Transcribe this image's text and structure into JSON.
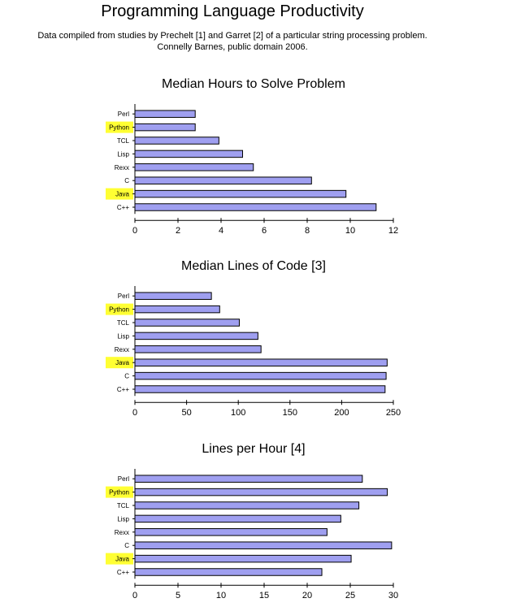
{
  "page": {
    "title": "Programming Language Productivity",
    "subtitle_line1": "Data compiled from studies by Prechelt [1] and Garret [2] of a particular string processing problem.",
    "subtitle_line2": "Connelly Barnes, public domain 2006."
  },
  "colors": {
    "bar": "#9f9ff0",
    "highlight": "#ffff33"
  },
  "chart_data": [
    {
      "type": "bar",
      "orientation": "horizontal",
      "title": "Median Hours to Solve Problem",
      "categories": [
        "Perl",
        "Python",
        "TCL",
        "Lisp",
        "Rexx",
        "C",
        "Java",
        "C++"
      ],
      "values": [
        2.8,
        2.8,
        3.9,
        5.0,
        5.5,
        8.2,
        9.8,
        11.2
      ],
      "highlighted": [
        "Python",
        "Java"
      ],
      "xlim": [
        0,
        12
      ],
      "xticks": [
        0,
        2,
        4,
        6,
        8,
        10,
        12
      ]
    },
    {
      "type": "bar",
      "orientation": "horizontal",
      "title": "Median Lines of Code [3]",
      "categories": [
        "Perl",
        "Python",
        "TCL",
        "Lisp",
        "Rexx",
        "Java",
        "C",
        "C++"
      ],
      "values": [
        74,
        82,
        101,
        119,
        122,
        244,
        243,
        242
      ],
      "highlighted": [
        "Python",
        "Java"
      ],
      "xlim": [
        0,
        250
      ],
      "xticks": [
        0,
        50,
        100,
        150,
        200,
        250
      ]
    },
    {
      "type": "bar",
      "orientation": "horizontal",
      "title": "Lines per Hour [4]",
      "categories": [
        "Perl",
        "Python",
        "TCL",
        "Lisp",
        "Rexx",
        "C",
        "Java",
        "C++"
      ],
      "values": [
        26.4,
        29.3,
        26.0,
        23.9,
        22.3,
        29.8,
        25.1,
        21.7
      ],
      "highlighted": [
        "Python",
        "Java"
      ],
      "xlim": [
        0,
        30
      ],
      "xticks": [
        0,
        5,
        10,
        15,
        20,
        25,
        30
      ]
    }
  ]
}
